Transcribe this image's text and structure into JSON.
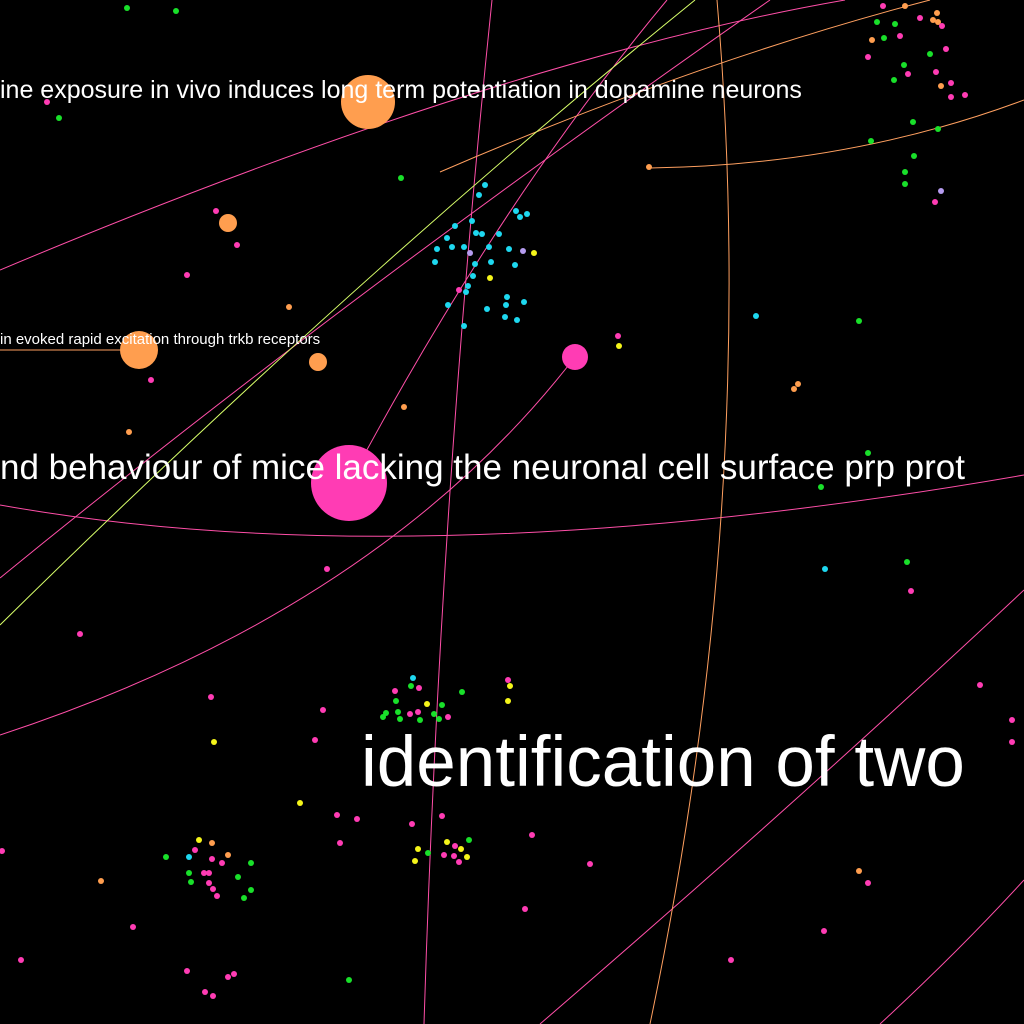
{
  "colors": {
    "background": "#000000",
    "pink": "#ff3cb4",
    "orange": "#ff9e4f",
    "green": "#19e02a",
    "cyan": "#1ed8f0",
    "yellow": "#f5f51a",
    "lavender": "#b69cf0",
    "label": "#ffffff",
    "edge_pink": "#ff4fa8",
    "edge_orange": "#ffa060",
    "edge_lime": "#d8ff6a"
  },
  "labels": [
    {
      "id": "label-dopamine",
      "text": "ine exposure in vivo induces long term potentiation in dopamine neurons"
    },
    {
      "id": "label-trkb",
      "text": "in evoked rapid excitation through trkb receptors"
    },
    {
      "id": "label-prp",
      "text": "nd behaviour of mice lacking the neuronal cell surface prp prot"
    },
    {
      "id": "label-identification",
      "text": "identification of two"
    }
  ]
}
